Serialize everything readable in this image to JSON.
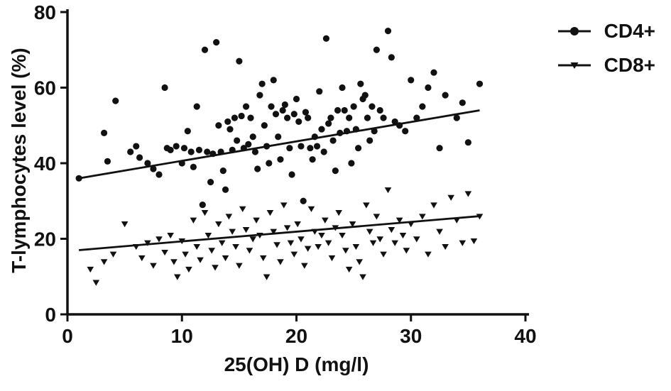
{
  "chart_data": {
    "type": "scatter",
    "title": "",
    "xlabel": "25(OH) D (mg/l)",
    "ylabel": "T-lymphocytes level (%)",
    "xlim": [
      0,
      40
    ],
    "ylim": [
      0,
      80
    ],
    "xticks": [
      0,
      10,
      20,
      30,
      40
    ],
    "yticks": [
      0,
      20,
      40,
      60,
      80
    ],
    "grid": false,
    "legend_position": "top-right",
    "point_color": "#111111",
    "series": [
      {
        "name": "CD4+",
        "marker": "circle",
        "trendline": {
          "x": [
            1,
            36
          ],
          "y": [
            36,
            54
          ]
        },
        "points": [
          [
            1.0,
            36
          ],
          [
            3.2,
            48
          ],
          [
            3.5,
            40.5
          ],
          [
            4.2,
            56.5
          ],
          [
            5.5,
            43
          ],
          [
            6.0,
            44.5
          ],
          [
            6.3,
            41.5
          ],
          [
            7.0,
            40
          ],
          [
            7.5,
            38.5
          ],
          [
            8.0,
            37
          ],
          [
            8.5,
            60
          ],
          [
            8.7,
            44
          ],
          [
            9.0,
            43.5
          ],
          [
            9.5,
            44.5
          ],
          [
            10.0,
            40
          ],
          [
            10.2,
            44
          ],
          [
            10.5,
            48.5
          ],
          [
            10.8,
            43
          ],
          [
            11.0,
            39
          ],
          [
            11.3,
            55
          ],
          [
            11.5,
            43.5
          ],
          [
            11.8,
            29
          ],
          [
            12.0,
            70
          ],
          [
            12.2,
            43
          ],
          [
            12.5,
            35
          ],
          [
            12.7,
            42.5
          ],
          [
            13.0,
            72
          ],
          [
            13.2,
            50
          ],
          [
            13.4,
            43
          ],
          [
            13.6,
            38
          ],
          [
            13.8,
            33
          ],
          [
            14.0,
            51
          ],
          [
            14.2,
            49
          ],
          [
            14.4,
            43.5
          ],
          [
            14.6,
            52
          ],
          [
            14.8,
            46
          ],
          [
            15.0,
            67
          ],
          [
            15.2,
            52.5
          ],
          [
            15.4,
            44
          ],
          [
            15.6,
            55
          ],
          [
            15.8,
            45
          ],
          [
            16.0,
            52
          ],
          [
            16.2,
            47
          ],
          [
            16.4,
            43
          ],
          [
            16.6,
            38.5
          ],
          [
            16.8,
            58
          ],
          [
            17.0,
            61
          ],
          [
            17.2,
            50
          ],
          [
            17.4,
            44.5
          ],
          [
            17.6,
            40
          ],
          [
            17.8,
            55
          ],
          [
            18.0,
            62
          ],
          [
            18.2,
            53
          ],
          [
            18.4,
            47
          ],
          [
            18.6,
            41
          ],
          [
            18.8,
            54
          ],
          [
            19.0,
            55.5
          ],
          [
            19.2,
            52
          ],
          [
            19.4,
            44
          ],
          [
            19.6,
            37
          ],
          [
            19.8,
            53
          ],
          [
            20.0,
            57
          ],
          [
            20.2,
            51
          ],
          [
            20.4,
            44.5
          ],
          [
            20.6,
            30
          ],
          [
            20.8,
            53.5
          ],
          [
            21.0,
            52
          ],
          [
            21.2,
            44
          ],
          [
            21.4,
            41
          ],
          [
            21.6,
            47
          ],
          [
            21.8,
            44.5
          ],
          [
            22.0,
            59
          ],
          [
            22.2,
            49
          ],
          [
            22.4,
            43
          ],
          [
            22.6,
            73
          ],
          [
            22.8,
            50.5
          ],
          [
            23.0,
            52
          ],
          [
            23.2,
            46
          ],
          [
            23.4,
            38
          ],
          [
            23.6,
            54
          ],
          [
            23.8,
            48
          ],
          [
            24.0,
            60
          ],
          [
            24.2,
            54
          ],
          [
            24.4,
            48.5
          ],
          [
            24.6,
            52
          ],
          [
            24.8,
            40
          ],
          [
            25.0,
            55
          ],
          [
            25.2,
            49
          ],
          [
            25.4,
            44
          ],
          [
            25.6,
            61
          ],
          [
            25.8,
            57
          ],
          [
            26.0,
            58
          ],
          [
            26.2,
            52
          ],
          [
            26.4,
            46
          ],
          [
            26.6,
            55
          ],
          [
            26.8,
            48.5
          ],
          [
            27.0,
            70
          ],
          [
            27.3,
            54
          ],
          [
            27.6,
            52
          ],
          [
            28.0,
            75
          ],
          [
            28.3,
            68
          ],
          [
            28.6,
            51
          ],
          [
            29.0,
            50
          ],
          [
            29.5,
            48.5
          ],
          [
            30.0,
            62
          ],
          [
            30.5,
            52
          ],
          [
            31.0,
            55
          ],
          [
            31.5,
            60
          ],
          [
            32.0,
            64
          ],
          [
            32.5,
            44
          ],
          [
            33.0,
            58
          ],
          [
            34.0,
            52
          ],
          [
            34.5,
            56
          ],
          [
            35.0,
            45.5
          ],
          [
            36.0,
            61
          ]
        ]
      },
      {
        "name": "CD8+",
        "marker": "triangle-down",
        "trendline": {
          "x": [
            1,
            36
          ],
          "y": [
            17,
            26
          ]
        },
        "points": [
          [
            2.0,
            12
          ],
          [
            2.5,
            8.5
          ],
          [
            3.2,
            14
          ],
          [
            4.0,
            16
          ],
          [
            5.0,
            24
          ],
          [
            6.0,
            18
          ],
          [
            6.5,
            15
          ],
          [
            7.0,
            19
          ],
          [
            7.5,
            13
          ],
          [
            8.0,
            20
          ],
          [
            8.5,
            16.5
          ],
          [
            9.0,
            21
          ],
          [
            9.3,
            14
          ],
          [
            9.6,
            10
          ],
          [
            10.0,
            19.5
          ],
          [
            10.3,
            16
          ],
          [
            10.6,
            12
          ],
          [
            11.0,
            25
          ],
          [
            11.3,
            18
          ],
          [
            11.6,
            14.5
          ],
          [
            12.0,
            27
          ],
          [
            12.3,
            21
          ],
          [
            12.6,
            17
          ],
          [
            12.9,
            12.5
          ],
          [
            13.2,
            24
          ],
          [
            13.5,
            19
          ],
          [
            13.8,
            15
          ],
          [
            14.1,
            26
          ],
          [
            14.4,
            22
          ],
          [
            14.7,
            18
          ],
          [
            15.0,
            13
          ],
          [
            15.3,
            28
          ],
          [
            15.6,
            22.5
          ],
          [
            15.9,
            17
          ],
          [
            16.2,
            20
          ],
          [
            16.5,
            25
          ],
          [
            16.8,
            21
          ],
          [
            17.1,
            15
          ],
          [
            17.4,
            10
          ],
          [
            17.7,
            27
          ],
          [
            18.0,
            22
          ],
          [
            18.3,
            18.5
          ],
          [
            18.6,
            14
          ],
          [
            18.9,
            29
          ],
          [
            19.2,
            23
          ],
          [
            19.5,
            19
          ],
          [
            19.8,
            16
          ],
          [
            20.1,
            24
          ],
          [
            20.4,
            20
          ],
          [
            20.7,
            13
          ],
          [
            21.0,
            17.5
          ],
          [
            21.3,
            28
          ],
          [
            21.6,
            22
          ],
          [
            21.9,
            18
          ],
          [
            22.2,
            21
          ],
          [
            22.5,
            25
          ],
          [
            22.8,
            19
          ],
          [
            23.1,
            15
          ],
          [
            23.4,
            23
          ],
          [
            23.7,
            27
          ],
          [
            24.0,
            21
          ],
          [
            24.3,
            17
          ],
          [
            24.6,
            12
          ],
          [
            24.9,
            24
          ],
          [
            25.2,
            18
          ],
          [
            25.5,
            14
          ],
          [
            25.8,
            10
          ],
          [
            26.1,
            29
          ],
          [
            26.4,
            22
          ],
          [
            26.7,
            19
          ],
          [
            27.0,
            26
          ],
          [
            27.3,
            20
          ],
          [
            27.6,
            16
          ],
          [
            28.0,
            33
          ],
          [
            28.3,
            22.5
          ],
          [
            28.6,
            19
          ],
          [
            29.0,
            25
          ],
          [
            29.3,
            21
          ],
          [
            29.6,
            17
          ],
          [
            30.0,
            24
          ],
          [
            30.5,
            20
          ],
          [
            31.0,
            26
          ],
          [
            31.5,
            16
          ],
          [
            32.0,
            29
          ],
          [
            32.5,
            22
          ],
          [
            33.0,
            18
          ],
          [
            33.5,
            31
          ],
          [
            34.0,
            25
          ],
          [
            34.5,
            19
          ],
          [
            35.0,
            32
          ],
          [
            35.5,
            19.5
          ],
          [
            36.0,
            26
          ]
        ]
      }
    ]
  }
}
